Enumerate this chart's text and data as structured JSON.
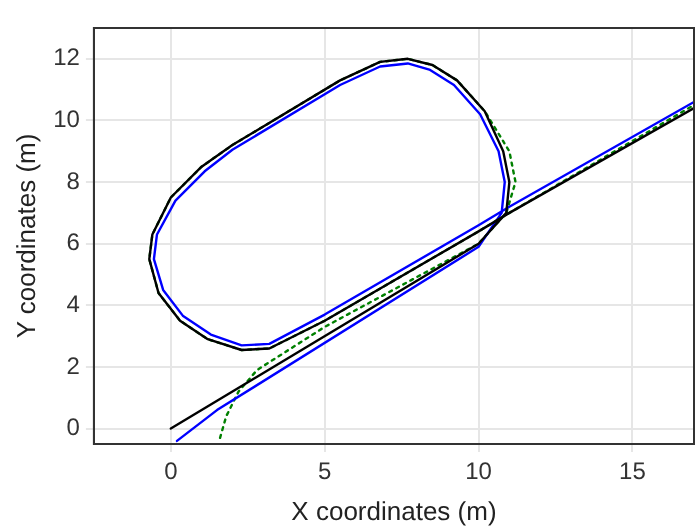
{
  "chart_data": {
    "type": "line",
    "xlabel": "X coordinates (m)",
    "ylabel": "Y coordinates (m)",
    "xlim": [
      -2.5,
      17
    ],
    "xticks": [
      0,
      5,
      10,
      15
    ],
    "ylim": [
      -0.5,
      13
    ],
    "yticks": [
      0,
      2,
      4,
      6,
      8,
      10,
      12
    ],
    "grid": true,
    "legend": false,
    "marker": "none",
    "series": [
      {
        "color": "#000000",
        "line_style": "solid",
        "x": [
          0,
          10,
          10.9,
          11,
          10.8,
          10.2,
          9.3,
          8.5,
          7.7,
          6.8,
          5.5,
          2,
          1,
          0,
          -0.6,
          -0.7,
          -0.4,
          0.3,
          1.2,
          2.3,
          3.2,
          5,
          10,
          11,
          17
        ],
        "values": [
          0,
          6.0,
          7,
          8,
          9,
          10.3,
          11.3,
          11.8,
          12,
          11.9,
          11.3,
          9.2,
          8.5,
          7.5,
          6.3,
          5.5,
          4.4,
          3.5,
          2.9,
          2.55,
          2.6,
          3.5,
          6.4,
          7.0,
          10.4
        ]
      },
      {
        "color": "#0000ff",
        "line_style": "solid",
        "x": [
          0.2,
          1.5,
          10,
          10.75,
          10.85,
          10.65,
          10.05,
          9.2,
          8.4,
          7.7,
          6.8,
          5.5,
          2,
          1.1,
          0.15,
          -0.45,
          -0.55,
          -0.25,
          0.4,
          1.3,
          2.3,
          3.2,
          5,
          10,
          11,
          17
        ],
        "values": [
          -0.4,
          0.6,
          5.9,
          7,
          8,
          9,
          10.2,
          11.15,
          11.65,
          11.85,
          11.75,
          11.15,
          9.05,
          8.35,
          7.4,
          6.3,
          5.5,
          4.5,
          3.65,
          3.05,
          2.7,
          2.75,
          3.7,
          6.6,
          7.2,
          10.6
        ]
      },
      {
        "color": "#008000",
        "line_style": "dotted",
        "x": [
          1.6,
          1.8,
          2.2,
          2.8,
          5,
          10,
          10.9,
          11.2,
          11,
          10.2,
          9.3,
          8.5,
          7.7,
          6.8,
          5.5,
          2,
          1,
          0,
          -0.6,
          -0.7,
          -0.4,
          0.3,
          1.2,
          2.3,
          3.2,
          5,
          10,
          11,
          17
        ],
        "values": [
          -0.3,
          0.4,
          1.2,
          1.9,
          3.3,
          6.0,
          7,
          8,
          9,
          10.3,
          11.3,
          11.8,
          12,
          11.9,
          11.3,
          9.2,
          8.5,
          7.5,
          6.3,
          5.5,
          4.4,
          3.5,
          2.9,
          2.55,
          2.6,
          3.5,
          6.4,
          7.0,
          10.5
        ]
      }
    ]
  }
}
